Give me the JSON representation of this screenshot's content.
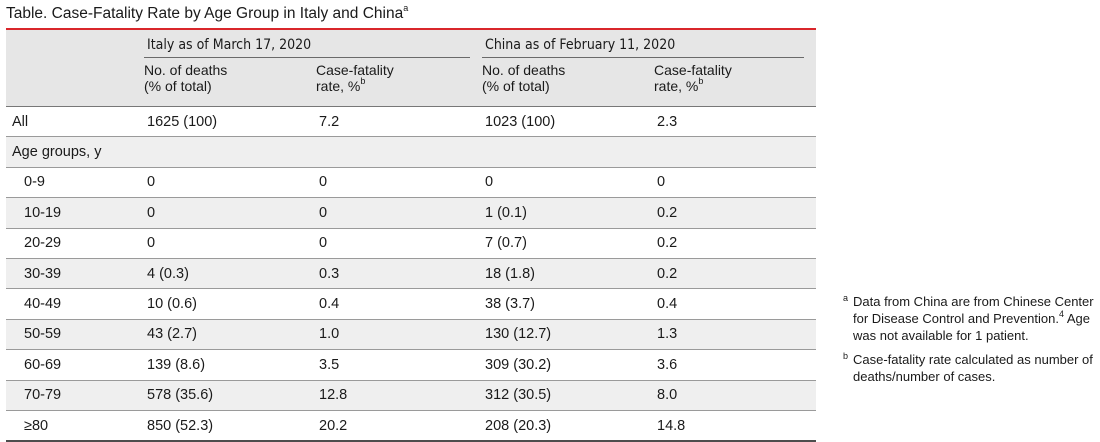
{
  "title": "Table. Case-Fatality Rate by Age Group in Italy and China",
  "title_sup": "a",
  "groups": {
    "italy": "Italy as of March 17, 2020",
    "china": "China as of February 11, 2020"
  },
  "headers": {
    "deaths_line1": "No. of deaths",
    "deaths_line2": "(% of total)",
    "cfr_line1": "Case-fatality",
    "cfr_line2": "rate, %",
    "cfr_sup": "b"
  },
  "rows": [
    {
      "label": "All",
      "it_deaths": "1625 (100)",
      "it_cfr": "7.2",
      "cn_deaths": "1023 (100)",
      "cn_cfr": "2.3"
    },
    {
      "label": "Age groups, y",
      "it_deaths": "",
      "it_cfr": "",
      "cn_deaths": "",
      "cn_cfr": ""
    },
    {
      "label": "0-9",
      "it_deaths": "0",
      "it_cfr": "0",
      "cn_deaths": "0",
      "cn_cfr": "0"
    },
    {
      "label": "10-19",
      "it_deaths": "0",
      "it_cfr": "0",
      "cn_deaths": "1 (0.1)",
      "cn_cfr": "0.2"
    },
    {
      "label": "20-29",
      "it_deaths": "0",
      "it_cfr": "0",
      "cn_deaths": "7 (0.7)",
      "cn_cfr": "0.2"
    },
    {
      "label": "30-39",
      "it_deaths": "4 (0.3)",
      "it_cfr": "0.3",
      "cn_deaths": "18 (1.8)",
      "cn_cfr": "0.2"
    },
    {
      "label": "40-49",
      "it_deaths": "10 (0.6)",
      "it_cfr": "0.4",
      "cn_deaths": "38 (3.7)",
      "cn_cfr": "0.4"
    },
    {
      "label": "50-59",
      "it_deaths": "43 (2.7)",
      "it_cfr": "1.0",
      "cn_deaths": "130 (12.7)",
      "cn_cfr": "1.3"
    },
    {
      "label": "60-69",
      "it_deaths": "139 (8.6)",
      "it_cfr": "3.5",
      "cn_deaths": "309 (30.2)",
      "cn_cfr": "3.6"
    },
    {
      "label": "70-79",
      "it_deaths": "578 (35.6)",
      "it_cfr": "12.8",
      "cn_deaths": "312 (30.5)",
      "cn_cfr": "8.0"
    },
    {
      "label": "≥80",
      "it_deaths": "850 (52.3)",
      "it_cfr": "20.2",
      "cn_deaths": "208 (20.3)",
      "cn_cfr": "14.8"
    }
  ],
  "footnotes": {
    "a_mark": "a",
    "a_text_1": "Data from China are from Chinese Center for Disease Control and Prevention.",
    "a_ref": "4",
    "a_text_2": " Age was not available for 1 patient.",
    "b_mark": "b",
    "b_text": "Case-fatality rate calculated as number of deaths/number of cases."
  },
  "colors": {
    "title_rule": "#d9262b",
    "header_bg": "#e6e6e6",
    "stripe_bg": "#efefef"
  }
}
